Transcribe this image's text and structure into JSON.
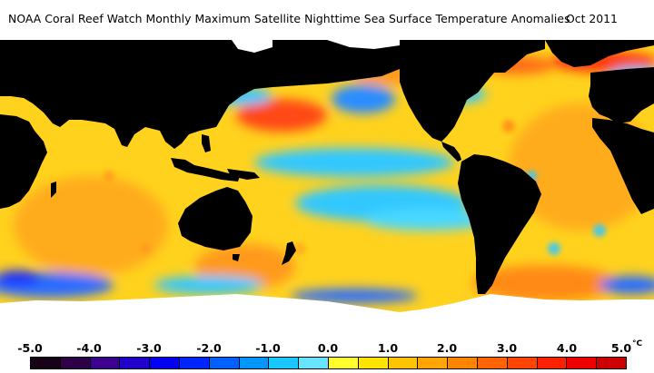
{
  "header": {
    "title": "NOAA Coral Reef Watch Monthly Maximum Satellite Nighttime Sea Surface Temperature Anomalies",
    "period": "Oct 2011"
  },
  "map": {
    "colors": {
      "land": "#000000",
      "ice": "#ffffff",
      "ocean_base": "#ffd21e",
      "warm_orange": "#ff9a1a",
      "warm_red": "#ff3a10",
      "cool_cyan": "#33c8ff",
      "cool_blue": "#2a6cff",
      "cold_blue": "#1a2cff"
    }
  },
  "scale": {
    "unit": "°C",
    "ticks": [
      "-5.0",
      "-4.0",
      "-3.0",
      "-2.0",
      "-1.0",
      "0.0",
      "1.0",
      "2.0",
      "3.0",
      "4.0",
      "5.0"
    ],
    "colors": [
      "#150015",
      "#2e0045",
      "#3c0090",
      "#2200cc",
      "#0000f0",
      "#0026ff",
      "#0060ff",
      "#0096ff",
      "#1ac6ff",
      "#66e4ff",
      "#ffff30",
      "#ffe400",
      "#ffc400",
      "#ffa400",
      "#ff8400",
      "#ff6400",
      "#ff4400",
      "#ff2000",
      "#ee0000",
      "#cc0000"
    ]
  }
}
